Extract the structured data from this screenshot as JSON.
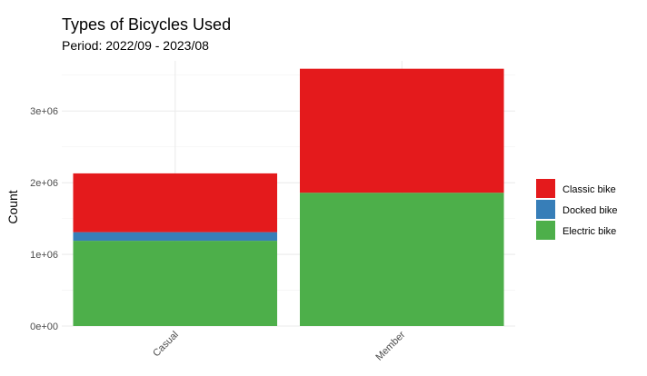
{
  "chart_data": {
    "type": "bar",
    "stacked": true,
    "title": "Types of Bicycles Used",
    "subtitle": "Period: 2022/09 - 2023/08",
    "xlabel": "",
    "ylabel": "Count",
    "categories": [
      "Casual",
      "Member"
    ],
    "series": [
      {
        "name": "Classic bike",
        "color": "#E41A1C",
        "values": [
          820000,
          1730000
        ]
      },
      {
        "name": "Docked bike",
        "color": "#377EB8",
        "values": [
          120000,
          0
        ]
      },
      {
        "name": "Electric bike",
        "color": "#4DAF4A",
        "values": [
          1190000,
          1860000
        ]
      }
    ],
    "yticks": [
      0,
      1000000,
      2000000,
      3000000
    ],
    "ytick_labels": [
      "0e+00",
      "1e+06",
      "2e+06",
      "3e+06"
    ],
    "ylim": [
      0,
      3700000
    ],
    "grid": true,
    "legend_position": "right"
  }
}
